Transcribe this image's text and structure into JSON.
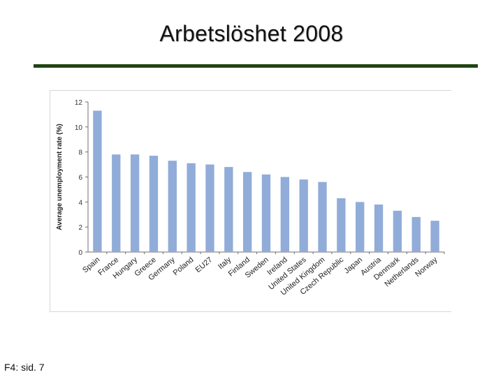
{
  "slide": {
    "title": "Arbetslöshet 2008",
    "footer": "F4: sid. 7",
    "rule_color": "#1f4414"
  },
  "chart_data": {
    "type": "bar",
    "title": "",
    "xlabel": "",
    "ylabel": "Average unemployment rate (%)",
    "ylim": [
      0,
      12
    ],
    "yticks": [
      0,
      2,
      4,
      6,
      8,
      10,
      12
    ],
    "grid": false,
    "bar_color": "#91acd8",
    "categories": [
      "Spain",
      "France",
      "Hungary",
      "Greece",
      "Germany",
      "Poland",
      "EU27",
      "Italy",
      "Finland",
      "Sweden",
      "Ireland",
      "United States",
      "United Kingdom",
      "Czech Republic",
      "Japan",
      "Austria",
      "Denmark",
      "Netherlands",
      "Norway"
    ],
    "values": [
      11.3,
      7.8,
      7.8,
      7.7,
      7.3,
      7.1,
      7.0,
      6.8,
      6.4,
      6.2,
      6.0,
      5.8,
      5.6,
      4.3,
      4.0,
      3.8,
      3.3,
      2.8,
      2.5
    ]
  }
}
